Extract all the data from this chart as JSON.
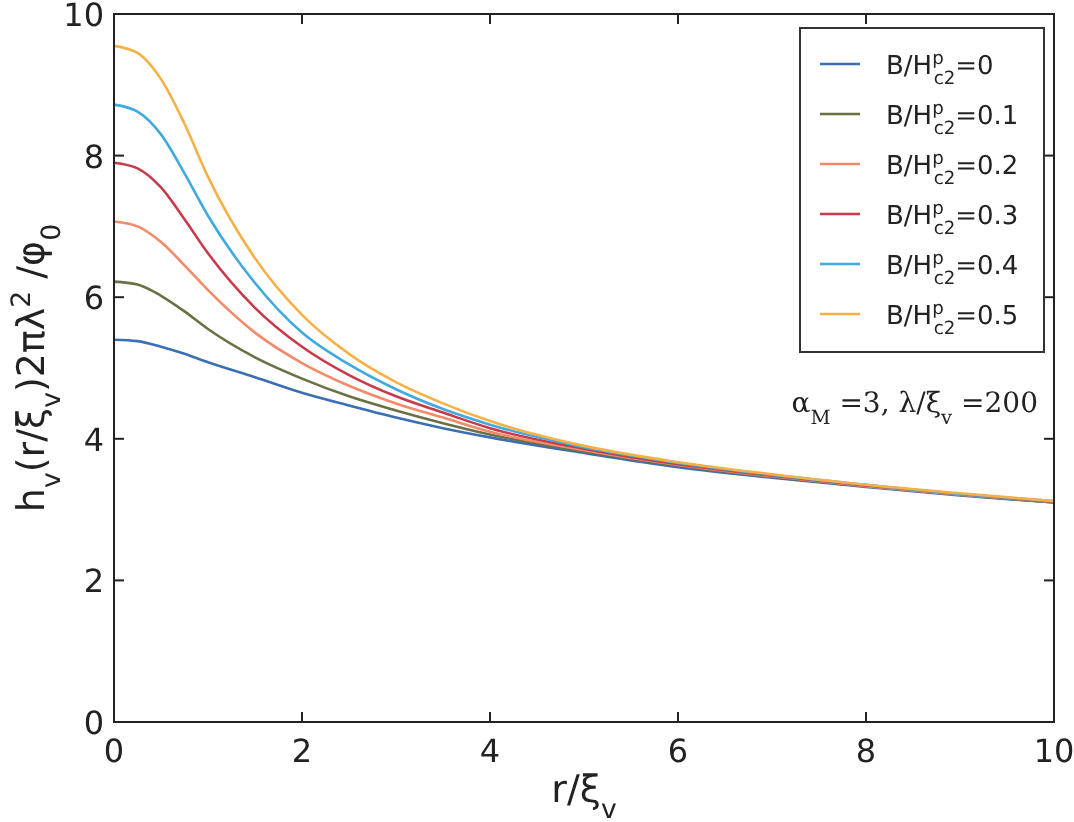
{
  "chart_data": {
    "type": "line",
    "xlabel": "r/ξ$_{v}$",
    "ylabel": "h$_{v}$(r/ξ$_{v}$)2πλ$^{2}$ /φ$_{0}$",
    "x": [
      0,
      0.25,
      0.5,
      0.75,
      1,
      1.5,
      2,
      2.5,
      3,
      3.5,
      4,
      5,
      6,
      7,
      8,
      9,
      10
    ],
    "series": [
      {
        "name": "B/H$^{p}$$_{c2}$=0",
        "color": "#3a6fb5",
        "values": [
          5.4,
          5.38,
          5.3,
          5.2,
          5.08,
          4.87,
          4.65,
          4.47,
          4.3,
          4.15,
          4.02,
          3.8,
          3.6,
          3.45,
          3.32,
          3.2,
          3.1
        ]
      },
      {
        "name": "B/H$^{p}$$_{c2}$=0.1",
        "color": "#6b7045",
        "values": [
          6.22,
          6.18,
          6.02,
          5.8,
          5.55,
          5.15,
          4.85,
          4.6,
          4.4,
          4.22,
          4.06,
          3.82,
          3.62,
          3.46,
          3.33,
          3.21,
          3.1
        ]
      },
      {
        "name": "B/H$^{p}$$_{c2}$=0.2",
        "color": "#f48a6a",
        "values": [
          7.07,
          7.0,
          6.78,
          6.45,
          6.1,
          5.5,
          5.07,
          4.75,
          4.5,
          4.3,
          4.1,
          3.84,
          3.63,
          3.47,
          3.33,
          3.21,
          3.11
        ]
      },
      {
        "name": "B/H$^{p}$$_{c2}$=0.3",
        "color": "#c83a4a",
        "values": [
          7.9,
          7.82,
          7.55,
          7.1,
          6.62,
          5.85,
          5.3,
          4.9,
          4.6,
          4.37,
          4.15,
          3.86,
          3.64,
          3.48,
          3.34,
          3.22,
          3.11
        ]
      },
      {
        "name": "B/H$^{p}$$_{c2}$=0.4",
        "color": "#3fa9e0",
        "values": [
          8.72,
          8.62,
          8.3,
          7.75,
          7.15,
          6.2,
          5.5,
          5.05,
          4.7,
          4.42,
          4.2,
          3.88,
          3.66,
          3.49,
          3.35,
          3.22,
          3.12
        ]
      },
      {
        "name": "B/H$^{p}$$_{c2}$=0.5",
        "color": "#f7b046",
        "values": [
          9.55,
          9.45,
          9.08,
          8.45,
          7.7,
          6.55,
          5.75,
          5.2,
          4.8,
          4.5,
          4.25,
          3.9,
          3.67,
          3.5,
          3.35,
          3.23,
          3.12
        ]
      }
    ],
    "annotations": [
      "α$_{M}$ =3, λ/ξ$_{v}$ =200"
    ],
    "xlim": [
      0,
      10
    ],
    "xticks": [
      0,
      2,
      4,
      6,
      8,
      10
    ],
    "ylim": [
      0,
      10
    ],
    "yticks": [
      0,
      2,
      4,
      6,
      8,
      10
    ],
    "legend": "top right",
    "grid": false,
    "marker": "none",
    "line_style": "solid"
  }
}
